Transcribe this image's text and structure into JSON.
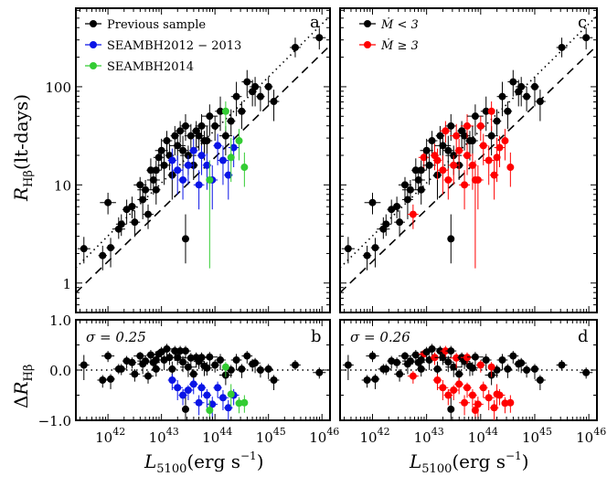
{
  "chart_data": {
    "type": "scatter",
    "x_axis": {
      "label": "L5100 (erg s^-1)",
      "label_main": "L",
      "label_sub": "5100",
      "label_unit": "(erg s",
      "label_exp": "−1",
      "label_close": ")",
      "log": true,
      "xlim_log": [
        41.4,
        46.15
      ],
      "ticks": [
        {
          "base": "10",
          "exp": "42",
          "v": 42
        },
        {
          "base": "10",
          "exp": "43",
          "v": 43
        },
        {
          "base": "10",
          "exp": "44",
          "v": 44
        },
        {
          "base": "10",
          "exp": "45",
          "v": 45
        },
        {
          "base": "10",
          "exp": "46",
          "v": 46
        }
      ]
    },
    "top_y_axis": {
      "label_main": "R",
      "label_sub": "Hβ",
      "label_unit": "(lt-days)",
      "log": true,
      "ylim_log": [
        -0.3,
        2.8
      ],
      "ticks": [
        {
          "text": "1",
          "v": 0
        },
        {
          "text": "10",
          "v": 1
        },
        {
          "text": "100",
          "v": 2
        }
      ]
    },
    "bottom_y_axis": {
      "label_prefix": "Δ",
      "label_main": "R",
      "label_sub": "Hβ",
      "ylim": [
        -1.0,
        1.0
      ],
      "ticks": [
        {
          "text": "1.0",
          "v": 1.0
        },
        {
          "text": "0.0",
          "v": 0.0
        },
        {
          "text": "−1.0",
          "v": -1.0
        }
      ]
    },
    "relations": {
      "dashed": {
        "slope": 0.53,
        "intercept_at_44": 1.28,
        "style": "dashed"
      },
      "dotted": {
        "slope": 0.54,
        "intercept_at_44": 1.56,
        "style": "dotted"
      }
    },
    "panels": [
      {
        "id": "a",
        "letter": "a",
        "legend": [
          {
            "label": "Previous sample",
            "color": "#000000"
          },
          {
            "label": "SEAMBH2012 − 2013",
            "color": "#0a14e6"
          },
          {
            "label": "SEAMBH2014",
            "color": "#33cc33"
          }
        ]
      },
      {
        "id": "b",
        "letter": "b",
        "sigma_label": "σ = 0.25"
      },
      {
        "id": "c",
        "letter": "c",
        "legend": [
          {
            "label": "Ṁ < 3",
            "color": "#000000"
          },
          {
            "label": "Ṁ ≥ 3",
            "color": "#ff0000"
          }
        ]
      },
      {
        "id": "d",
        "letter": "d",
        "sigma_label": "σ = 0.26"
      }
    ],
    "series": [
      {
        "name": "Previous sample",
        "color": "#000000",
        "points": [
          [
            41.55,
            0.35,
            0.12,
            0.15,
            0.12
          ],
          [
            41.9,
            0.28,
            0.08,
            0.15,
            0.1
          ],
          [
            42.0,
            0.82,
            0.15,
            0.12,
            0.1
          ],
          [
            42.05,
            0.36,
            0.08,
            0.2,
            0.1
          ],
          [
            42.2,
            0.55,
            0.12,
            0.1,
            0.12
          ],
          [
            42.25,
            0.6,
            0.1,
            0.12,
            0.1
          ],
          [
            42.35,
            0.75,
            0.08,
            0.15,
            0.1
          ],
          [
            42.45,
            0.78,
            0.08,
            0.12,
            0.1
          ],
          [
            42.5,
            0.62,
            0.1,
            0.15,
            0.12
          ],
          [
            42.6,
            1.0,
            0.12,
            0.18,
            0.08
          ],
          [
            42.65,
            0.85,
            0.1,
            0.2,
            0.12
          ],
          [
            42.7,
            0.95,
            0.15,
            0.1,
            0.1
          ],
          [
            42.75,
            0.7,
            0.1,
            0.15,
            0.1
          ],
          [
            42.8,
            1.15,
            0.08,
            0.2,
            0.12
          ],
          [
            42.85,
            1.05,
            0.12,
            0.15,
            0.1
          ],
          [
            42.9,
            0.95,
            0.08,
            0.15,
            0.1
          ],
          [
            42.95,
            1.28,
            0.1,
            0.15,
            0.08
          ],
          [
            43.0,
            1.35,
            0.12,
            0.2,
            0.12
          ],
          [
            43.05,
            1.2,
            0.12,
            0.2,
            0.12
          ],
          [
            43.1,
            1.45,
            0.1,
            0.15,
            0.1
          ],
          [
            43.15,
            1.3,
            0.08,
            0.15,
            0.12
          ],
          [
            43.2,
            1.1,
            0.08,
            0.25,
            0.15
          ],
          [
            43.25,
            1.5,
            0.08,
            0.2,
            0.1
          ],
          [
            43.3,
            1.4,
            0.15,
            0.15,
            0.1
          ],
          [
            43.35,
            1.55,
            0.1,
            0.12,
            0.1
          ],
          [
            43.4,
            1.35,
            0.1,
            0.2,
            0.15
          ],
          [
            43.45,
            1.6,
            0.1,
            0.15,
            0.12
          ],
          [
            43.5,
            1.3,
            0.15,
            0.2,
            0.1
          ],
          [
            43.55,
            1.5,
            0.12,
            0.2,
            0.12
          ],
          [
            43.6,
            1.2,
            0.08,
            0.15,
            0.1
          ],
          [
            43.65,
            1.55,
            0.08,
            0.2,
            0.1
          ],
          [
            43.7,
            1.5,
            0.1,
            0.15,
            0.12
          ],
          [
            43.75,
            1.6,
            0.12,
            0.2,
            0.12
          ],
          [
            43.8,
            1.45,
            0.08,
            0.2,
            0.1
          ],
          [
            43.85,
            1.45,
            0.1,
            0.15,
            0.15
          ],
          [
            43.9,
            1.7,
            0.15,
            0.2,
            0.12
          ],
          [
            44.0,
            1.6,
            0.08,
            0.15,
            0.1
          ],
          [
            44.1,
            1.75,
            0.1,
            0.2,
            0.15
          ],
          [
            44.2,
            1.5,
            0.12,
            0.2,
            0.1
          ],
          [
            44.3,
            1.65,
            0.08,
            0.15,
            0.12
          ],
          [
            44.4,
            1.9,
            0.1,
            0.2,
            0.15
          ],
          [
            44.5,
            1.75,
            0.08,
            0.18,
            0.1
          ],
          [
            44.6,
            2.05,
            0.1,
            0.15,
            0.12
          ],
          [
            44.7,
            1.95,
            0.08,
            0.15,
            0.12
          ],
          [
            44.75,
            2.0,
            0.1,
            0.2,
            0.1
          ],
          [
            44.85,
            1.9,
            0.08,
            0.15,
            0.1
          ],
          [
            45.0,
            2.0,
            0.08,
            0.2,
            0.1
          ],
          [
            45.1,
            1.85,
            0.1,
            0.2,
            0.12
          ],
          [
            45.5,
            2.4,
            0.1,
            0.1,
            0.1
          ],
          [
            45.95,
            2.5,
            0.12,
            0.12,
            0.1
          ],
          [
            43.45,
            0.45,
            0.05,
            0.25,
            0.25
          ],
          [
            42.9,
            1.15,
            0.1,
            0.15,
            0.1
          ]
        ]
      },
      {
        "name": "SEAMBH2012 − 2013",
        "color": "#0a14e6",
        "points": [
          [
            43.2,
            1.25,
            0.08,
            0.2,
            0.12
          ],
          [
            43.3,
            1.15,
            0.1,
            0.25,
            0.15
          ],
          [
            43.4,
            1.05,
            0.08,
            0.2,
            0.12
          ],
          [
            43.5,
            1.2,
            0.1,
            0.2,
            0.1
          ],
          [
            43.6,
            1.35,
            0.08,
            0.2,
            0.12
          ],
          [
            43.7,
            1.0,
            0.1,
            0.25,
            0.15
          ],
          [
            43.75,
            1.3,
            0.08,
            0.2,
            0.1
          ],
          [
            43.85,
            1.2,
            0.08,
            0.25,
            0.12
          ],
          [
            43.95,
            1.05,
            0.1,
            0.3,
            0.15
          ],
          [
            44.05,
            1.4,
            0.08,
            0.2,
            0.12
          ],
          [
            44.15,
            1.25,
            0.1,
            0.25,
            0.15
          ],
          [
            44.25,
            1.1,
            0.08,
            0.25,
            0.15
          ],
          [
            44.35,
            1.38,
            0.1,
            0.2,
            0.12
          ]
        ]
      },
      {
        "name": "SEAMBH2014",
        "color": "#33cc33",
        "points": [
          [
            43.9,
            1.05,
            0.05,
            0.9,
            0.2
          ],
          [
            44.2,
            1.75,
            0.05,
            0.2,
            0.1
          ],
          [
            44.3,
            1.28,
            0.05,
            0.25,
            0.2
          ],
          [
            44.45,
            1.45,
            0.05,
            0.2,
            0.12
          ],
          [
            44.55,
            1.18,
            0.05,
            0.2,
            0.15
          ]
        ]
      }
    ],
    "residual_series": [
      {
        "name": "Previous sample",
        "color": "#000000",
        "points": [
          [
            41.55,
            0.1,
            0.1,
            0.3,
            0.2
          ],
          [
            41.9,
            -0.2,
            0.1,
            0.15,
            0.1
          ],
          [
            42.0,
            0.28,
            0.12,
            0.12,
            0.1
          ],
          [
            42.05,
            -0.18,
            0.08,
            0.2,
            0.1
          ],
          [
            42.2,
            0.02,
            0.1,
            0.1,
            0.1
          ],
          [
            42.25,
            0.02,
            0.1,
            0.12,
            0.1
          ],
          [
            42.35,
            0.18,
            0.08,
            0.15,
            0.1
          ],
          [
            42.45,
            0.15,
            0.08,
            0.12,
            0.1
          ],
          [
            42.5,
            -0.08,
            0.1,
            0.15,
            0.1
          ],
          [
            42.6,
            0.28,
            0.12,
            0.18,
            0.08
          ],
          [
            42.65,
            0.12,
            0.1,
            0.2,
            0.1
          ],
          [
            42.7,
            0.18,
            0.15,
            0.1,
            0.1
          ],
          [
            42.75,
            -0.12,
            0.1,
            0.15,
            0.1
          ],
          [
            42.8,
            0.3,
            0.08,
            0.2,
            0.1
          ],
          [
            42.85,
            0.15,
            0.12,
            0.15,
            0.1
          ],
          [
            42.9,
            0.02,
            0.08,
            0.15,
            0.1
          ],
          [
            42.95,
            0.32,
            0.1,
            0.15,
            0.08
          ],
          [
            43.0,
            0.36,
            0.12,
            0.2,
            0.1
          ],
          [
            43.05,
            0.2,
            0.12,
            0.2,
            0.1
          ],
          [
            43.1,
            0.42,
            0.1,
            0.15,
            0.1
          ],
          [
            43.15,
            0.25,
            0.08,
            0.15,
            0.1
          ],
          [
            43.2,
            0.02,
            0.08,
            0.25,
            0.15
          ],
          [
            43.25,
            0.38,
            0.08,
            0.2,
            0.1
          ],
          [
            43.3,
            0.25,
            0.15,
            0.15,
            0.1
          ],
          [
            43.35,
            0.38,
            0.1,
            0.12,
            0.1
          ],
          [
            43.4,
            0.16,
            0.1,
            0.2,
            0.12
          ],
          [
            43.45,
            0.38,
            0.1,
            0.15,
            0.1
          ],
          [
            43.5,
            0.06,
            0.15,
            0.2,
            0.1
          ],
          [
            43.55,
            0.24,
            0.12,
            0.2,
            0.1
          ],
          [
            43.6,
            -0.08,
            0.08,
            0.15,
            0.1
          ],
          [
            43.65,
            0.25,
            0.08,
            0.2,
            0.1
          ],
          [
            43.7,
            0.17,
            0.1,
            0.15,
            0.1
          ],
          [
            43.75,
            0.25,
            0.12,
            0.2,
            0.1
          ],
          [
            43.8,
            0.08,
            0.08,
            0.2,
            0.1
          ],
          [
            43.85,
            0.04,
            0.1,
            0.15,
            0.12
          ],
          [
            43.9,
            0.26,
            0.15,
            0.2,
            0.1
          ],
          [
            44.0,
            0.1,
            0.08,
            0.15,
            0.1
          ],
          [
            44.1,
            0.2,
            0.1,
            0.2,
            0.12
          ],
          [
            44.2,
            -0.1,
            0.12,
            0.2,
            0.1
          ],
          [
            44.3,
            0.0,
            0.08,
            0.15,
            0.1
          ],
          [
            44.4,
            0.2,
            0.1,
            0.2,
            0.12
          ],
          [
            44.5,
            0.02,
            0.08,
            0.18,
            0.1
          ],
          [
            44.6,
            0.28,
            0.1,
            0.15,
            0.1
          ],
          [
            44.7,
            0.12,
            0.08,
            0.15,
            0.1
          ],
          [
            44.75,
            0.14,
            0.1,
            0.2,
            0.1
          ],
          [
            44.85,
            0.0,
            0.08,
            0.15,
            0.1
          ],
          [
            45.0,
            0.02,
            0.08,
            0.2,
            0.1
          ],
          [
            45.1,
            -0.2,
            0.1,
            0.2,
            0.1
          ],
          [
            45.5,
            0.1,
            0.1,
            0.1,
            0.1
          ],
          [
            45.95,
            -0.05,
            0.12,
            0.12,
            0.1
          ],
          [
            43.45,
            -0.78,
            0.05,
            0.25,
            0.25
          ],
          [
            42.9,
            0.2,
            0.1,
            0.15,
            0.1
          ]
        ]
      },
      {
        "name": "SEAMBH2012 − 2013",
        "color": "#0a14e6",
        "points": [
          [
            43.2,
            -0.2,
            0.08,
            0.2,
            0.12
          ],
          [
            43.3,
            -0.35,
            0.1,
            0.25,
            0.15
          ],
          [
            43.4,
            -0.5,
            0.08,
            0.2,
            0.12
          ],
          [
            43.5,
            -0.4,
            0.1,
            0.2,
            0.1
          ],
          [
            43.6,
            -0.28,
            0.08,
            0.2,
            0.12
          ],
          [
            43.7,
            -0.65,
            0.1,
            0.25,
            0.15
          ],
          [
            43.75,
            -0.35,
            0.08,
            0.2,
            0.1
          ],
          [
            43.85,
            -0.5,
            0.08,
            0.25,
            0.12
          ],
          [
            43.95,
            -0.68,
            0.1,
            0.3,
            0.15
          ],
          [
            44.05,
            -0.35,
            0.08,
            0.2,
            0.12
          ],
          [
            44.15,
            -0.55,
            0.1,
            0.25,
            0.15
          ],
          [
            44.25,
            -0.75,
            0.08,
            0.25,
            0.15
          ],
          [
            44.35,
            -0.5,
            0.1,
            0.2,
            0.12
          ]
        ]
      },
      {
        "name": "SEAMBH2014",
        "color": "#33cc33",
        "points": [
          [
            43.9,
            -0.8,
            0.05,
            0.6,
            0.2
          ],
          [
            44.2,
            0.06,
            0.05,
            0.2,
            0.1
          ],
          [
            44.3,
            -0.48,
            0.05,
            0.25,
            0.2
          ],
          [
            44.45,
            -0.66,
            0.05,
            0.2,
            0.12
          ],
          [
            44.55,
            -0.65,
            0.05,
            0.2,
            0.15
          ]
        ]
      }
    ],
    "mdot_split": {
      "low_label": "Ṁ < 3",
      "high_label": "Ṁ ≥ 3",
      "low_color": "#000000",
      "high_color": "#ff0000"
    }
  }
}
